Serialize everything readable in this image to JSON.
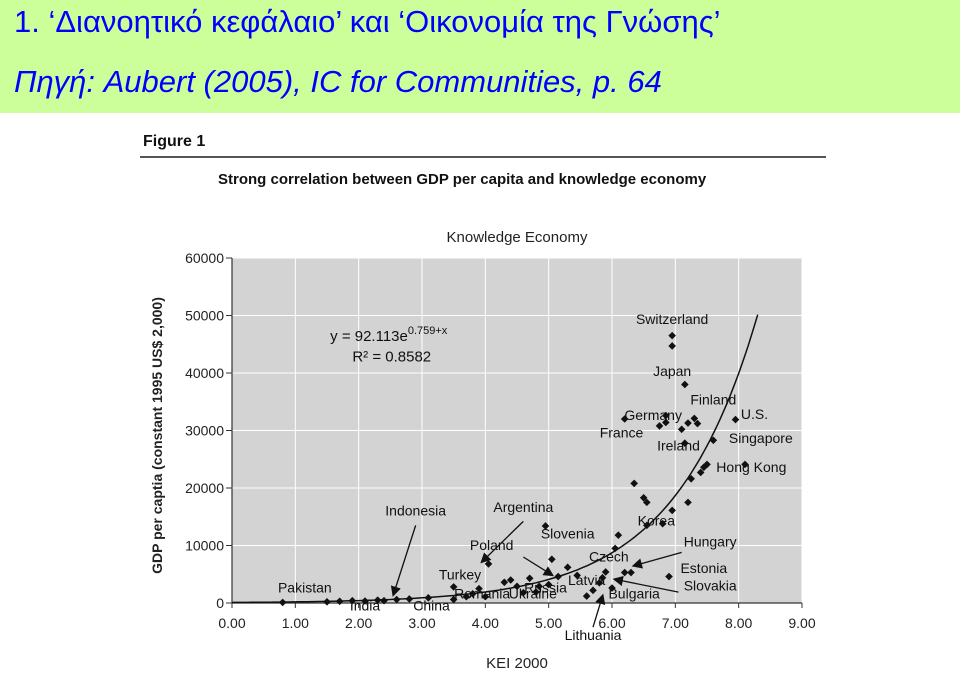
{
  "slide": {
    "title": "1. ‘Διανοητικό κεφάλαιο’ και ‘Οικονομία της Γνώσης’",
    "subtitle": "Πηγή: Aubert (2005), IC for Communities, p. 64",
    "colors": {
      "background": "#ccff99",
      "text": "#0000ff"
    }
  },
  "figure": {
    "label": "Figure 1",
    "caption": "Strong correlation between GDP per capita and knowledge economy"
  },
  "chart_data": {
    "type": "scatter",
    "title": "Knowledge Economy",
    "xlabel": "KEI 2000",
    "ylabel": "GDP per captia (constant 1995 US$ 2,000)",
    "xlim": [
      0,
      9
    ],
    "ylim": [
      0,
      60000
    ],
    "x_ticks": [
      "0.00",
      "1.00",
      "2.00",
      "3.00",
      "4.00",
      "5.00",
      "6.00",
      "7.00",
      "8.00",
      "9.00"
    ],
    "y_ticks": [
      "0",
      "10000",
      "20000",
      "30000",
      "40000",
      "50000",
      "60000"
    ],
    "grid": true,
    "plot_background": "#d3d3d3",
    "equation": "y = 92.113e",
    "equation_exp": "0.759+x",
    "r_squared": "R² = 0.8582",
    "trendline": {
      "a": 92.113,
      "b": 0.759
    },
    "points": [
      {
        "x": 0.8,
        "y": 100
      },
      {
        "x": 1.5,
        "y": 200
      },
      {
        "x": 1.7,
        "y": 300
      },
      {
        "x": 1.9,
        "y": 400
      },
      {
        "x": 2.1,
        "y": 350
      },
      {
        "x": 2.3,
        "y": 500
      },
      {
        "x": 2.4,
        "y": 400
      },
      {
        "x": 2.6,
        "y": 600
      },
      {
        "x": 2.8,
        "y": 700
      },
      {
        "x": 3.1,
        "y": 900
      },
      {
        "x": 3.5,
        "y": 600
      },
      {
        "x": 3.7,
        "y": 1100
      },
      {
        "x": 3.5,
        "y": 2800
      },
      {
        "x": 3.8,
        "y": 1600
      },
      {
        "x": 3.9,
        "y": 2500
      },
      {
        "x": 4.0,
        "y": 1100
      },
      {
        "x": 4.05,
        "y": 6800
      },
      {
        "x": 4.3,
        "y": 3600
      },
      {
        "x": 4.4,
        "y": 4000
      },
      {
        "x": 4.5,
        "y": 2900
      },
      {
        "x": 4.6,
        "y": 1800
      },
      {
        "x": 4.7,
        "y": 4300
      },
      {
        "x": 4.8,
        "y": 1900
      },
      {
        "x": 4.85,
        "y": 2900
      },
      {
        "x": 4.95,
        "y": 13400
      },
      {
        "x": 5.0,
        "y": 3200
      },
      {
        "x": 5.05,
        "y": 7600
      },
      {
        "x": 5.15,
        "y": 4600
      },
      {
        "x": 5.3,
        "y": 6200
      },
      {
        "x": 5.45,
        "y": 4800
      },
      {
        "x": 5.6,
        "y": 1200
      },
      {
        "x": 5.7,
        "y": 2200
      },
      {
        "x": 5.8,
        "y": 3500
      },
      {
        "x": 5.85,
        "y": 4400
      },
      {
        "x": 5.9,
        "y": 5400
      },
      {
        "x": 6.0,
        "y": 2600
      },
      {
        "x": 6.05,
        "y": 9500
      },
      {
        "x": 6.1,
        "y": 11800
      },
      {
        "x": 6.2,
        "y": 5300
      },
      {
        "x": 6.3,
        "y": 5300
      },
      {
        "x": 6.35,
        "y": 20800
      },
      {
        "x": 6.5,
        "y": 18300
      },
      {
        "x": 6.55,
        "y": 17500
      },
      {
        "x": 6.55,
        "y": 13500
      },
      {
        "x": 6.8,
        "y": 13800
      },
      {
        "x": 6.9,
        "y": 4600
      },
      {
        "x": 6.95,
        "y": 16100
      },
      {
        "x": 7.1,
        "y": 30200
      },
      {
        "x": 7.15,
        "y": 27800
      },
      {
        "x": 7.15,
        "y": 38000
      },
      {
        "x": 7.2,
        "y": 31300
      },
      {
        "x": 7.2,
        "y": 17500
      },
      {
        "x": 7.25,
        "y": 21600
      },
      {
        "x": 7.3,
        "y": 32100
      },
      {
        "x": 7.35,
        "y": 31200
      },
      {
        "x": 7.4,
        "y": 22700
      },
      {
        "x": 7.45,
        "y": 23600
      },
      {
        "x": 7.5,
        "y": 24100
      },
      {
        "x": 7.6,
        "y": 28300
      },
      {
        "x": 7.95,
        "y": 31900
      },
      {
        "x": 8.1,
        "y": 24100
      },
      {
        "x": 6.85,
        "y": 31400
      },
      {
        "x": 6.75,
        "y": 30800
      },
      {
        "x": 6.95,
        "y": 46500
      },
      {
        "x": 6.95,
        "y": 44700
      },
      {
        "x": 6.85,
        "y": 32600
      },
      {
        "x": 6.2,
        "y": 32000
      }
    ],
    "annotations": [
      {
        "text": "Switzerland",
        "x": 6.95,
        "y": 48500
      },
      {
        "text": "Japan",
        "x": 6.95,
        "y": 39500
      },
      {
        "text": "Finland",
        "x": 7.6,
        "y": 34500
      },
      {
        "text": "U.S.",
        "x": 8.25,
        "y": 32000
      },
      {
        "text": "Germany",
        "x": 6.65,
        "y": 31800
      },
      {
        "text": "France",
        "x": 6.15,
        "y": 28800
      },
      {
        "text": "Singapore",
        "x": 8.35,
        "y": 27800
      },
      {
        "text": "Ireland",
        "x": 7.05,
        "y": 26500
      },
      {
        "text": "Hong Kong",
        "x": 8.2,
        "y": 22800
      },
      {
        "text": "Argentina",
        "x": 4.6,
        "y": 15800
      },
      {
        "text": "Indonesia",
        "x": 2.9,
        "y": 15200
      },
      {
        "text": "Korea",
        "x": 6.7,
        "y": 13500
      },
      {
        "text": "Slovenia",
        "x": 5.3,
        "y": 11200
      },
      {
        "text": "Hungary",
        "x": 7.55,
        "y": 9800
      },
      {
        "text": "Poland",
        "x": 4.1,
        "y": 9200
      },
      {
        "text": "Czech",
        "x": 5.95,
        "y": 7200
      },
      {
        "text": "Estonia",
        "x": 7.45,
        "y": 5200
      },
      {
        "text": "Turkey",
        "x": 3.6,
        "y": 4100
      },
      {
        "text": "Latvia",
        "x": 5.6,
        "y": 3100
      },
      {
        "text": "Slovakia",
        "x": 7.55,
        "y": 2200
      },
      {
        "text": "Pakistan",
        "x": 1.15,
        "y": 1800
      },
      {
        "text": "Russia",
        "x": 4.95,
        "y": 1800
      },
      {
        "text": "Romania",
        "x": 3.95,
        "y": 800
      },
      {
        "text": "Ukraine",
        "x": 4.75,
        "y": 800
      },
      {
        "text": "Bulgaria",
        "x": 6.35,
        "y": 800
      },
      {
        "text": "India",
        "x": 2.1,
        "y": -1300
      },
      {
        "text": "China",
        "x": 3.15,
        "y": -1300
      },
      {
        "text": "Lithuania",
        "x": 5.7,
        "y": -6400
      }
    ]
  }
}
